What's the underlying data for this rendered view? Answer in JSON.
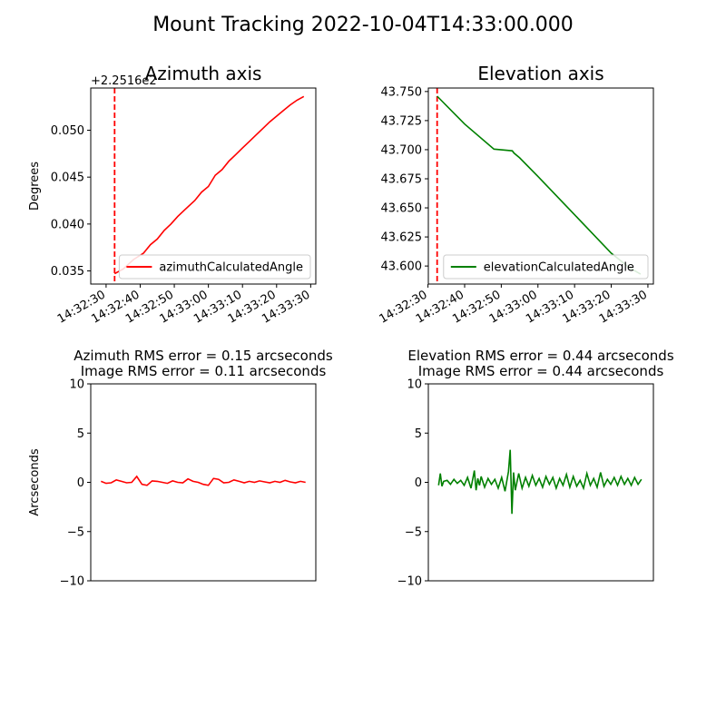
{
  "figure": {
    "suptitle": "Mount Tracking 2022-10-04T14:33:00.000"
  },
  "chart_data": [
    {
      "id": "az",
      "type": "line",
      "title": "Azimuth axis",
      "ylabel": "Degrees",
      "xlabel": "",
      "offset_label": "+2.2516e2",
      "x_tick_labels": [
        "14:32:30",
        "14:32:40",
        "14:32:50",
        "14:33:00",
        "14:33:10",
        "14:33:20",
        "14:33:30"
      ],
      "x_tick_seconds": [
        -30,
        -20,
        -10,
        0,
        10,
        20,
        30
      ],
      "xlim_seconds": [
        -34.5,
        31.5
      ],
      "x_reference": "14:33:00",
      "ylim": [
        0.0336,
        0.0545
      ],
      "y_ticks": [
        0.035,
        0.04,
        0.045,
        0.05
      ],
      "y_tick_labels": [
        "0.035",
        "0.040",
        "0.045",
        "0.050"
      ],
      "vline_seconds": -27.5,
      "vline_color": "#ff0000",
      "legend_position": "lower-right",
      "series": [
        {
          "name": "azimuthCalculatedAngle",
          "color": "#ff0000",
          "x": [
            -27.5,
            -25,
            -22,
            -19,
            -17,
            -15,
            -13,
            -11,
            -9,
            -7,
            -4,
            -2,
            0,
            2,
            4,
            6,
            8,
            10,
            12,
            14,
            16,
            18,
            20,
            22,
            24,
            26,
            28
          ],
          "y": [
            0.0347,
            0.0352,
            0.0362,
            0.0369,
            0.0378,
            0.0384,
            0.0393,
            0.04,
            0.0408,
            0.0415,
            0.0425,
            0.0434,
            0.044,
            0.0452,
            0.0458,
            0.0467,
            0.0474,
            0.0481,
            0.0488,
            0.0495,
            0.0502,
            0.0509,
            0.0515,
            0.0521,
            0.0527,
            0.0532,
            0.0536
          ]
        }
      ]
    },
    {
      "id": "el",
      "type": "line",
      "title": "Elevation axis",
      "ylabel": "",
      "xlabel": "",
      "x_tick_labels": [
        "14:32:30",
        "14:32:40",
        "14:32:50",
        "14:33:00",
        "14:33:10",
        "14:33:20",
        "14:33:30"
      ],
      "x_tick_seconds": [
        -30,
        -20,
        -10,
        0,
        10,
        20,
        30
      ],
      "xlim_seconds": [
        -29.9,
        31.5
      ],
      "x_reference": "14:33:00",
      "ylim": [
        43.5845,
        43.753
      ],
      "y_ticks": [
        43.6,
        43.625,
        43.65,
        43.675,
        43.7,
        43.725,
        43.75
      ],
      "y_tick_labels": [
        "43.600",
        "43.625",
        "43.650",
        "43.675",
        "43.700",
        "43.725",
        "43.750"
      ],
      "vline_seconds": -27.5,
      "vline_color": "#ff0000",
      "legend_position": "lower-right",
      "series": [
        {
          "name": "elevationCalculatedAngle",
          "color": "#008000",
          "x": [
            -27.5,
            -20,
            -12,
            -7,
            -6.5,
            -5,
            0,
            10,
            20,
            25,
            28
          ],
          "y": [
            43.746,
            43.722,
            43.7005,
            43.699,
            43.697,
            43.693,
            43.677,
            43.644,
            43.611,
            43.5985,
            43.593
          ]
        }
      ]
    },
    {
      "id": "azerr",
      "type": "line",
      "title": "Azimuth RMS error = 0.15 arcseconds",
      "subtitle": "Image RMS error = 0.11 arcseconds",
      "ylabel": "Arcseconds",
      "xlabel": "",
      "ylim": [
        -10,
        10
      ],
      "y_ticks": [
        -10,
        -5,
        0,
        5,
        10
      ],
      "y_tick_labels": [
        "−10",
        "−5",
        "0",
        "5",
        "10"
      ],
      "xlim_seconds": [
        -34.5,
        31.5
      ],
      "series": [
        {
          "name": "",
          "color": "#ff0000",
          "x": [
            -31.5,
            -30,
            -28.5,
            -27,
            -25.5,
            -24,
            -22.5,
            -21,
            -19.5,
            -18,
            -16.5,
            -15,
            -13.5,
            -12,
            -10.5,
            -9,
            -7.5,
            -6,
            -4.5,
            -3,
            -1.5,
            0,
            1.5,
            3,
            4.5,
            6,
            7.5,
            9,
            10.5,
            12,
            13.5,
            15,
            16.5,
            18,
            19.5,
            21,
            22.5,
            24,
            25.5,
            27,
            28.5
          ],
          "y": [
            0.1,
            -0.1,
            -0.05,
            0.25,
            0.1,
            -0.05,
            0.0,
            0.6,
            -0.2,
            -0.3,
            0.15,
            0.1,
            0.0,
            -0.1,
            0.15,
            0.0,
            -0.05,
            0.35,
            0.1,
            0.0,
            -0.2,
            -0.3,
            0.4,
            0.3,
            -0.05,
            0.0,
            0.25,
            0.1,
            -0.05,
            0.1,
            0.0,
            0.15,
            0.05,
            -0.05,
            0.1,
            0.0,
            0.2,
            0.05,
            -0.05,
            0.1,
            0.0
          ]
        }
      ]
    },
    {
      "id": "elerr",
      "type": "line",
      "title": "Elevation RMS error = 0.44 arcseconds",
      "subtitle": "Image RMS error = 0.44 arcseconds",
      "ylabel": "",
      "xlabel": "",
      "ylim": [
        -10,
        10
      ],
      "y_ticks": [
        -10,
        -5,
        0,
        5,
        10
      ],
      "y_tick_labels": [
        "−10",
        "−5",
        "0",
        "5",
        "10"
      ],
      "xlim_seconds": [
        -34.5,
        31.5
      ],
      "series": [
        {
          "name": "",
          "color": "#008000",
          "x": [
            -31.5,
            -31,
            -30.5,
            -30,
            -29,
            -28,
            -27,
            -26,
            -25,
            -24,
            -23,
            -22,
            -21,
            -20.5,
            -20,
            -19.5,
            -19,
            -18,
            -17,
            -16,
            -15,
            -14,
            -13,
            -12,
            -11,
            -10.5,
            -10,
            -9.5,
            -9,
            -8,
            -7,
            -6,
            -5,
            -4,
            -3,
            -2,
            -1,
            0,
            1,
            2,
            3,
            4,
            5,
            6,
            7,
            8,
            9,
            10,
            11,
            12,
            13,
            14,
            15,
            16,
            17,
            18,
            19,
            20,
            21,
            22,
            23,
            24,
            25,
            26,
            27,
            28
          ],
          "y": [
            -0.3,
            0.9,
            -0.4,
            0.1,
            0.2,
            -0.2,
            0.3,
            -0.1,
            0.2,
            -0.3,
            0.5,
            -0.6,
            1.2,
            -0.8,
            0.4,
            -0.3,
            0.6,
            -0.5,
            0.4,
            -0.2,
            0.3,
            -0.6,
            0.5,
            -0.9,
            1.1,
            3.3,
            -3.2,
            1.0,
            -0.8,
            0.9,
            -0.6,
            0.5,
            -0.4,
            0.7,
            -0.3,
            0.4,
            -0.5,
            0.6,
            -0.2,
            0.5,
            -0.6,
            0.4,
            -0.3,
            0.8,
            -0.5,
            0.6,
            -0.4,
            0.2,
            -0.6,
            0.9,
            -0.3,
            0.4,
            -0.5,
            1.0,
            -0.4,
            0.3,
            -0.2,
            0.5,
            -0.3,
            0.6,
            -0.2,
            0.4,
            -0.3,
            0.5,
            -0.2,
            0.3
          ]
        }
      ]
    }
  ]
}
